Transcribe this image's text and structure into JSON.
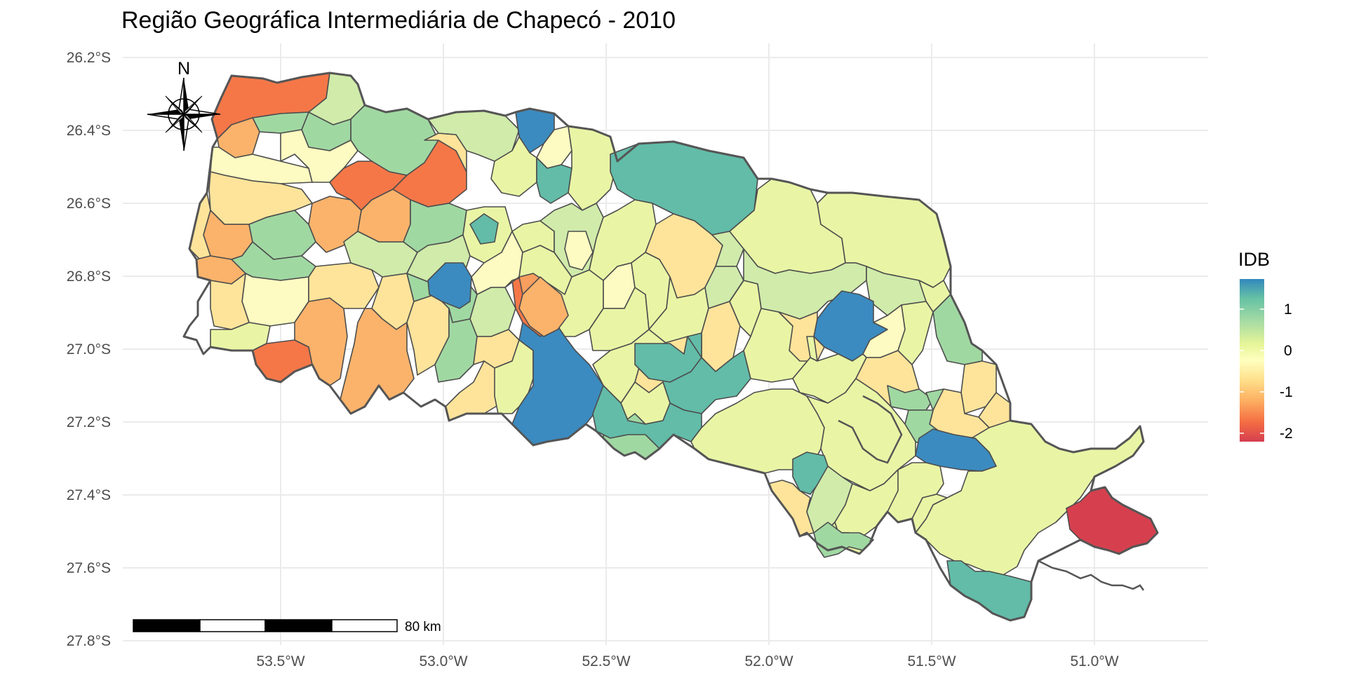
{
  "title": "Região Geográfica Intermediária de Chapecó - 2010",
  "axes": {
    "y_ticks": [
      "26.2°S",
      "26.4°S",
      "26.6°S",
      "26.8°S",
      "27.0°S",
      "27.2°S",
      "27.4°S",
      "27.6°S",
      "27.8°S"
    ],
    "x_ticks": [
      "53.5°W",
      "53.0°W",
      "52.5°W",
      "52.0°W",
      "51.5°W",
      "51.0°W"
    ]
  },
  "legend": {
    "title": "IDB",
    "labels": [
      "1",
      "0",
      "-1",
      "-2"
    ],
    "colors": [
      "#3288bd",
      "#66c2a5",
      "#abdda4",
      "#e6f598",
      "#ffffbf",
      "#fee08b",
      "#fdae61",
      "#f46d43",
      "#d53e4f"
    ]
  },
  "scale_bar": {
    "label": "80 km"
  },
  "north_arrow": {
    "label": "N",
    "icon": "compass-rose-icon"
  },
  "colors": {
    "blue": "#3b8bc0",
    "teal": "#62bca8",
    "light_green": "#a0d8a2",
    "pale_green": "#d0ebaa",
    "yellow_green": "#e9f5a5",
    "pale_yellow": "#fdfbc1",
    "light_orange": "#fde49a",
    "orange": "#fbb36b",
    "dark_orange": "#f57748",
    "red": "#d6404e"
  },
  "chart_data": {
    "type": "choropleth",
    "title": "Região Geográfica Intermediária de Chapecó - 2010",
    "variable": "IDB",
    "legend_range": [
      -2,
      1
    ],
    "legend_breaks": [
      1,
      0,
      -1,
      -2
    ],
    "x_axis_ticks": [
      "53.5°W",
      "53.0°W",
      "52.5°W",
      "52.0°W",
      "51.5°W",
      "51.0°W"
    ],
    "y_axis_ticks": [
      "26.2°S",
      "26.4°S",
      "26.6°S",
      "26.8°S",
      "27.0°S",
      "27.2°S",
      "27.4°S",
      "27.6°S",
      "27.8°S"
    ],
    "lon_range": [
      -53.98,
      -50.62
    ],
    "lat_range": [
      -27.8,
      -26.2
    ],
    "grid": true,
    "legend_position": "right",
    "scale_bar_label": "80 km"
  }
}
